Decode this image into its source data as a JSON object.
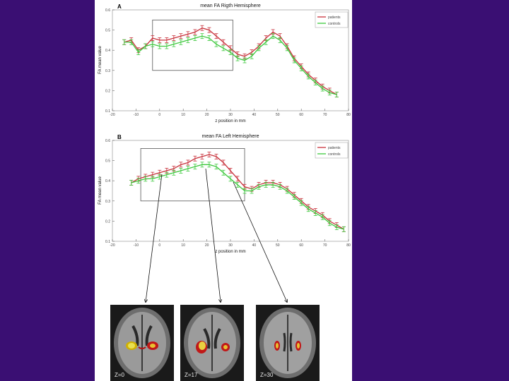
{
  "chart_data": [
    {
      "id": "A",
      "type": "line",
      "panel_letter": "A",
      "title": "mean FA Rigth Hemisphere",
      "xlabel": "z position in mm",
      "ylabel": "FA mean value",
      "xlim": [
        -20,
        80
      ],
      "ylim": [
        0.1,
        0.6
      ],
      "xticks": [
        -20,
        -10,
        0,
        10,
        20,
        30,
        40,
        50,
        60,
        70,
        80
      ],
      "yticks": [
        0.1,
        0.2,
        0.3,
        0.4,
        0.5,
        0.6
      ],
      "legend_position": "top-right",
      "zoom_box": {
        "x": [
          -3,
          31
        ],
        "y": [
          0.3,
          0.55
        ]
      },
      "series": [
        {
          "name": "patients",
          "color": "#c8323c",
          "x": [
            -15,
            -12,
            -9,
            -6,
            -3,
            0,
            3,
            6,
            9,
            12,
            15,
            18,
            21,
            24,
            27,
            30,
            33,
            36,
            39,
            42,
            45,
            48,
            51,
            54,
            57,
            60,
            63,
            66,
            69,
            72,
            75
          ],
          "y": [
            0.44,
            0.45,
            0.4,
            0.42,
            0.46,
            0.45,
            0.45,
            0.46,
            0.47,
            0.48,
            0.49,
            0.51,
            0.5,
            0.47,
            0.44,
            0.41,
            0.38,
            0.37,
            0.39,
            0.42,
            0.46,
            0.49,
            0.47,
            0.42,
            0.36,
            0.32,
            0.28,
            0.25,
            0.22,
            0.2,
            0.18
          ]
        },
        {
          "name": "controls",
          "color": "#3cc83c",
          "x": [
            -15,
            -12,
            -9,
            -6,
            -3,
            0,
            3,
            6,
            9,
            12,
            15,
            18,
            21,
            24,
            27,
            30,
            33,
            36,
            39,
            42,
            45,
            48,
            51,
            54,
            57,
            60,
            63,
            66,
            69,
            72,
            75
          ],
          "y": [
            0.44,
            0.44,
            0.39,
            0.42,
            0.43,
            0.42,
            0.42,
            0.43,
            0.44,
            0.45,
            0.46,
            0.47,
            0.46,
            0.43,
            0.41,
            0.39,
            0.36,
            0.35,
            0.37,
            0.41,
            0.44,
            0.47,
            0.45,
            0.41,
            0.35,
            0.31,
            0.27,
            0.24,
            0.21,
            0.19,
            0.18
          ]
        }
      ]
    },
    {
      "id": "B",
      "type": "line",
      "panel_letter": "B",
      "title": "mean FA Left Hemisphere",
      "xlabel": "z position in mm",
      "ylabel": "FA mean value",
      "xlim": [
        -20,
        80
      ],
      "ylim": [
        0.1,
        0.6
      ],
      "xticks": [
        -20,
        -10,
        0,
        10,
        20,
        30,
        40,
        50,
        60,
        70,
        80
      ],
      "yticks": [
        0.1,
        0.2,
        0.3,
        0.4,
        0.5,
        0.6
      ],
      "legend_position": "top-right",
      "zoom_box": {
        "x": [
          -8,
          36
        ],
        "y": [
          0.3,
          0.56
        ]
      },
      "series": [
        {
          "name": "patients",
          "color": "#c8323c",
          "x": [
            -12,
            -9,
            -6,
            -3,
            0,
            3,
            6,
            9,
            12,
            15,
            18,
            21,
            24,
            27,
            30,
            33,
            36,
            39,
            42,
            45,
            48,
            51,
            54,
            57,
            60,
            63,
            66,
            69,
            72,
            75,
            78
          ],
          "y": [
            0.39,
            0.41,
            0.42,
            0.43,
            0.44,
            0.45,
            0.46,
            0.48,
            0.49,
            0.51,
            0.52,
            0.53,
            0.52,
            0.49,
            0.45,
            0.41,
            0.37,
            0.36,
            0.38,
            0.39,
            0.39,
            0.38,
            0.36,
            0.33,
            0.3,
            0.27,
            0.25,
            0.23,
            0.2,
            0.18,
            0.16
          ]
        },
        {
          "name": "controls",
          "color": "#3cc83c",
          "x": [
            -12,
            -9,
            -6,
            -3,
            0,
            3,
            6,
            9,
            12,
            15,
            18,
            21,
            24,
            27,
            30,
            33,
            36,
            39,
            42,
            45,
            48,
            51,
            54,
            57,
            60,
            63,
            66,
            69,
            72,
            75,
            78
          ],
          "y": [
            0.39,
            0.4,
            0.41,
            0.41,
            0.42,
            0.43,
            0.44,
            0.45,
            0.46,
            0.47,
            0.48,
            0.48,
            0.47,
            0.44,
            0.41,
            0.38,
            0.35,
            0.35,
            0.37,
            0.38,
            0.38,
            0.37,
            0.35,
            0.32,
            0.29,
            0.26,
            0.24,
            0.22,
            0.19,
            0.17,
            0.16
          ]
        }
      ]
    }
  ],
  "brain_images": [
    {
      "label": "Z=0"
    },
    {
      "label": "Z=17"
    },
    {
      "label": "Z=30"
    }
  ]
}
